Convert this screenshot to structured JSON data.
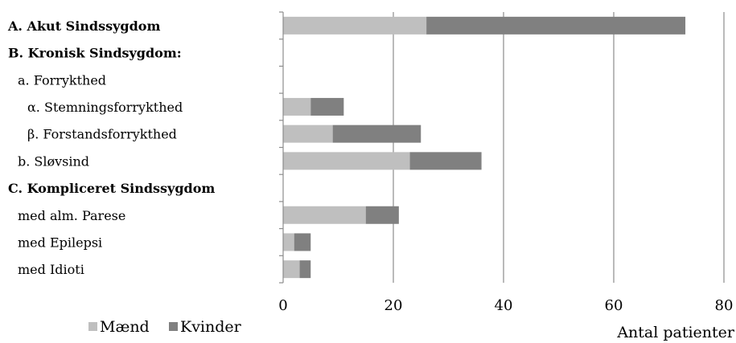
{
  "chart_data": {
    "type": "bar",
    "orientation": "horizontal",
    "stacked": true,
    "categories": [
      "A. Akut Sindssygdom",
      "B. Kronisk Sindsygdom:",
      "a. Forrykthed",
      "α. Stemningsforrykthed",
      "β. Forstandsforrykthed",
      "b.  Sløvsind",
      "C. Kompliceret Sindssygdom",
      "med alm. Parese",
      "med Epilepsi",
      "med Idioti"
    ],
    "category_levels": [
      0,
      0,
      1,
      2,
      2,
      1,
      0,
      1,
      1,
      1
    ],
    "category_bold": [
      true,
      true,
      false,
      false,
      false,
      false,
      true,
      false,
      false,
      false
    ],
    "series": [
      {
        "name": "Mænd",
        "color": "#bfbfbf",
        "values": [
          26,
          0,
          0,
          5,
          9,
          23,
          0,
          15,
          2,
          3
        ]
      },
      {
        "name": "Kvinder",
        "color": "#808080",
        "values": [
          47,
          0,
          0,
          6,
          16,
          13,
          0,
          6,
          3,
          2
        ]
      }
    ],
    "xlabel": "Antal patienter",
    "xlim": [
      0,
      80
    ],
    "xticks": [
      "0",
      "20",
      "40",
      "60",
      "80"
    ],
    "grid": true,
    "legend_position": "bottom-left"
  }
}
